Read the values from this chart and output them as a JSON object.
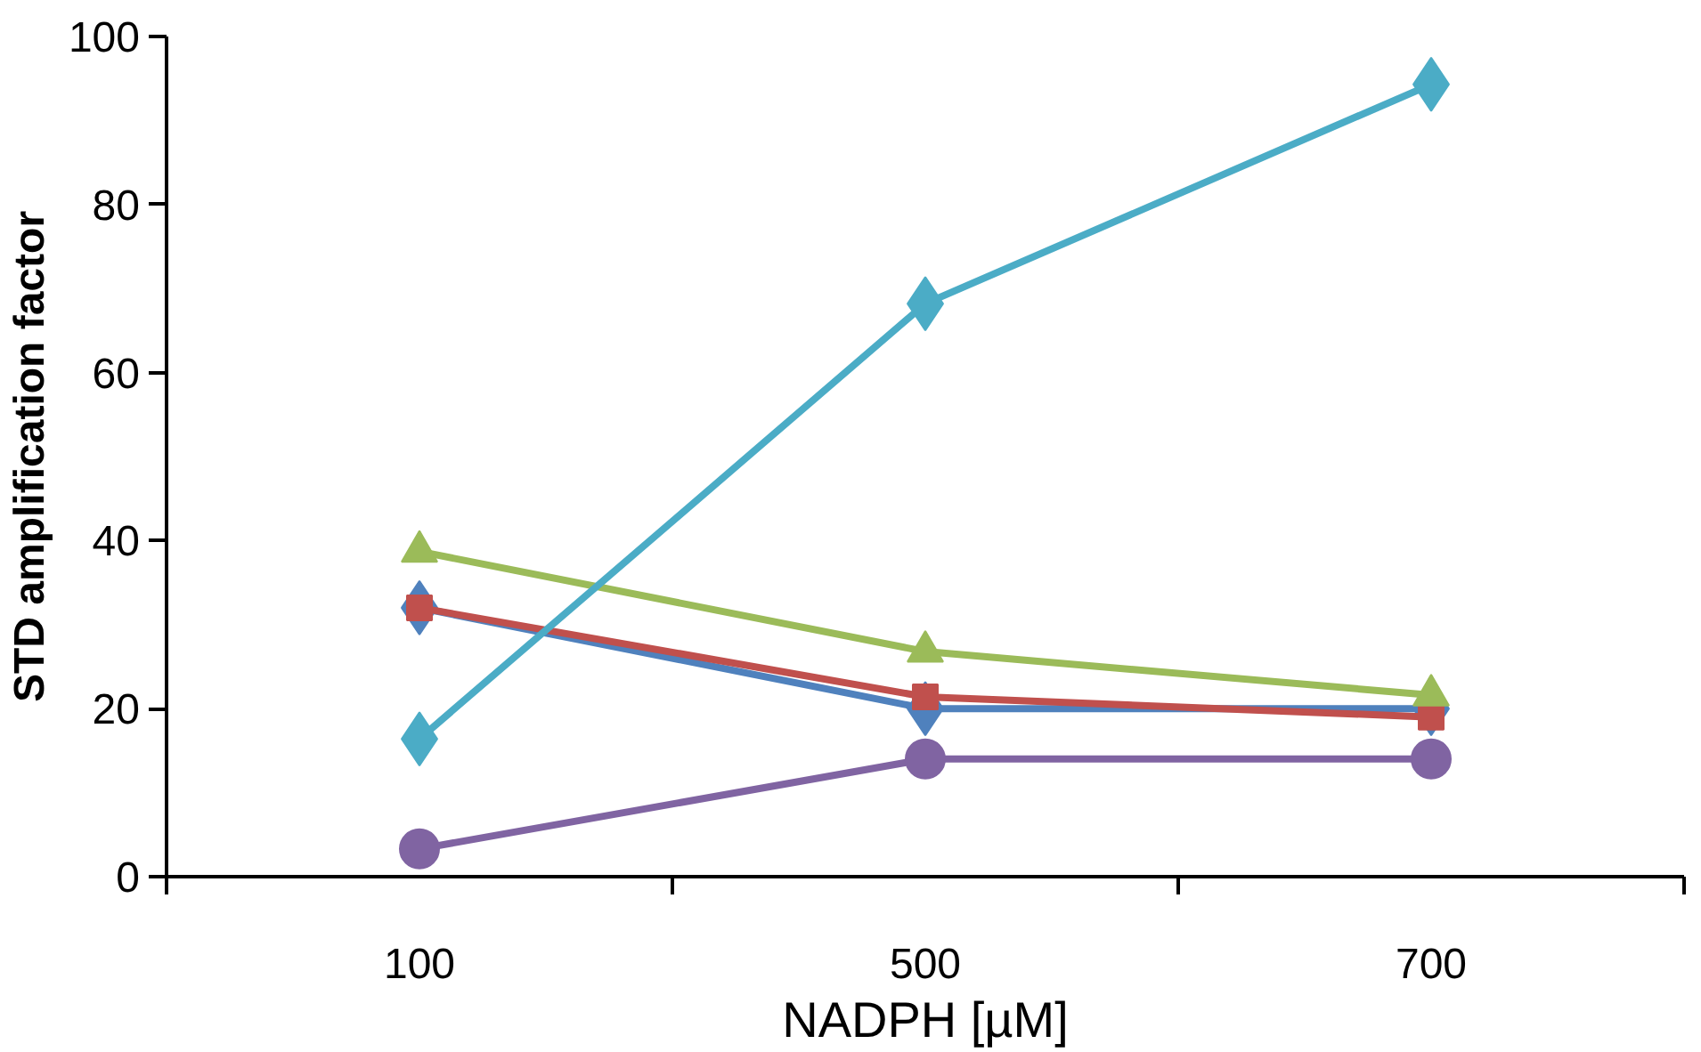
{
  "chart_data": {
    "type": "line",
    "xlabel": "NADPH [µM]",
    "ylabel": "STD amplification factor",
    "categories": [
      "100",
      "500",
      "700"
    ],
    "ylim": [
      0,
      100
    ],
    "yticks": [
      0,
      20,
      40,
      60,
      80,
      100
    ],
    "grid": false,
    "line_style": "solid",
    "series": [
      {
        "color": "#4f81bd",
        "marker": "diamond",
        "values": [
          32,
          20,
          20
        ]
      },
      {
        "color": "#c0504d",
        "marker": "square",
        "values": [
          32,
          21.4,
          19
        ]
      },
      {
        "color": "#9bbb59",
        "marker": "triangle",
        "values": [
          38.7,
          26.8,
          21.6
        ]
      },
      {
        "color": "#8064a2",
        "marker": "circle",
        "values": [
          3.3,
          14,
          14
        ]
      },
      {
        "color": "#4bacc6",
        "marker": "diamond",
        "values": [
          16.4,
          68.2,
          94.3
        ]
      }
    ]
  }
}
